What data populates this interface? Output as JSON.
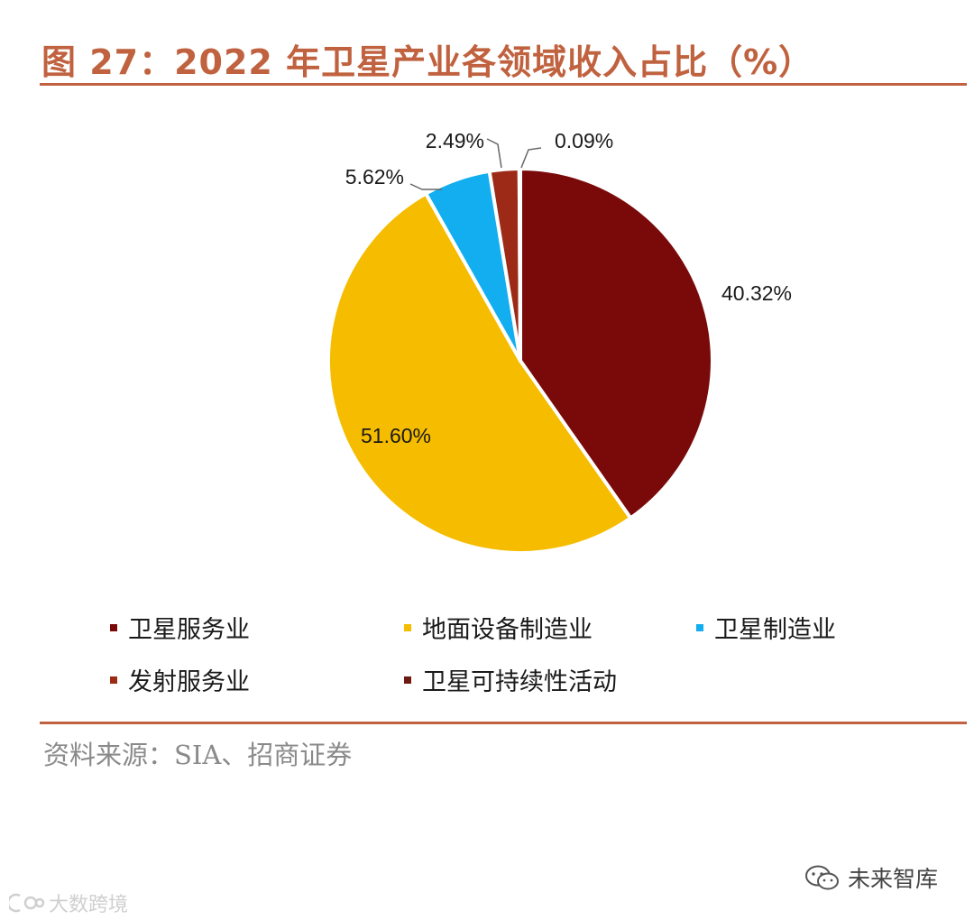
{
  "title": "图 27：2022 年卫星产业各领域收入占比（%）",
  "chart_data": {
    "type": "pie",
    "title": "图 27：2022 年卫星产业各领域收入占比（%）",
    "start_angle_deg": 0,
    "direction": "clockwise",
    "slices": [
      {
        "name": "卫星服务业",
        "value": 40.32,
        "label": "40.32%",
        "color": "#7a0a0a"
      },
      {
        "name": "地面设备制造业",
        "value": 51.6,
        "label": "51.60%",
        "color": "#f5bc00"
      },
      {
        "name": "卫星制造业",
        "value": 5.62,
        "label": "5.62%",
        "color": "#12aef0"
      },
      {
        "name": "发射服务业",
        "value": 2.49,
        "label": "2.49%",
        "color": "#9c2a16"
      },
      {
        "name": "卫星可持续性活动",
        "value": 0.09,
        "label": "0.09%",
        "color": "#6e1a12"
      }
    ],
    "legend_position": "bottom"
  },
  "legend": [
    {
      "label": "卫星服务业",
      "color": "#7a0a0a"
    },
    {
      "label": "地面设备制造业",
      "color": "#f5bc00"
    },
    {
      "label": "卫星制造业",
      "color": "#12aef0"
    },
    {
      "label": "发射服务业",
      "color": "#9c2a16"
    },
    {
      "label": "卫星可持续性活动",
      "color": "#6e1a12"
    }
  ],
  "source": "资料来源：SIA、招商证券",
  "watermark_right": {
    "icon": "wechat-icon",
    "text": "未来智库"
  },
  "watermark_left": {
    "icon": "logo-icon",
    "text": "大数跨境"
  }
}
